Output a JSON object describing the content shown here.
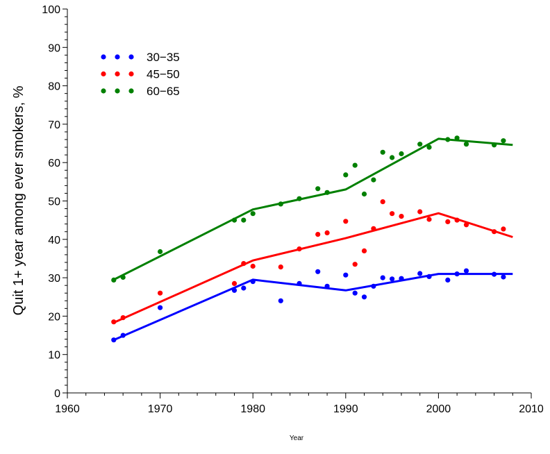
{
  "chart_data": {
    "type": "scatter",
    "title": "",
    "xlabel": "Year",
    "ylabel": "Quit 1+  year among ever smokers, %",
    "xlim": [
      1960,
      2010
    ],
    "ylim": [
      0,
      100
    ],
    "xticks": [
      1960,
      1970,
      1980,
      1990,
      2000,
      2010
    ],
    "yticks": [
      0,
      10,
      20,
      30,
      40,
      50,
      60,
      70,
      80,
      90,
      100
    ],
    "legend_position": "top-left",
    "series": [
      {
        "name": "30−35",
        "color": "#0000ff",
        "points": [
          [
            1965,
            13.8
          ],
          [
            1966,
            15.0
          ],
          [
            1970,
            22.2
          ],
          [
            1978,
            26.7
          ],
          [
            1979,
            27.3
          ],
          [
            1980,
            29.0
          ],
          [
            1983,
            24.0
          ],
          [
            1985,
            28.5
          ],
          [
            1987,
            31.6
          ],
          [
            1988,
            27.8
          ],
          [
            1990,
            30.7
          ],
          [
            1991,
            26.0
          ],
          [
            1992,
            25.0
          ],
          [
            1993,
            27.8
          ],
          [
            1994,
            30.0
          ],
          [
            1995,
            29.7
          ],
          [
            1996,
            29.8
          ],
          [
            1998,
            31.1
          ],
          [
            1999,
            30.3
          ],
          [
            2001,
            29.4
          ],
          [
            2002,
            31.0
          ],
          [
            2003,
            31.8
          ],
          [
            2006,
            30.9
          ],
          [
            2007,
            30.2
          ]
        ],
        "trend": [
          [
            1965,
            13.8
          ],
          [
            1980,
            29.5
          ],
          [
            1990,
            26.7
          ],
          [
            2000,
            31.0
          ],
          [
            2008,
            31.0
          ]
        ]
      },
      {
        "name": "45−50",
        "color": "#ff0000",
        "points": [
          [
            1965,
            18.5
          ],
          [
            1966,
            19.6
          ],
          [
            1970,
            26.0
          ],
          [
            1978,
            28.5
          ],
          [
            1979,
            33.7
          ],
          [
            1980,
            33.0
          ],
          [
            1983,
            32.8
          ],
          [
            1985,
            37.5
          ],
          [
            1987,
            41.3
          ],
          [
            1988,
            41.7
          ],
          [
            1990,
            44.7
          ],
          [
            1991,
            33.5
          ],
          [
            1992,
            37.0
          ],
          [
            1993,
            42.8
          ],
          [
            1994,
            49.8
          ],
          [
            1995,
            46.7
          ],
          [
            1996,
            46.0
          ],
          [
            1998,
            47.2
          ],
          [
            1999,
            45.2
          ],
          [
            2001,
            44.6
          ],
          [
            2002,
            45.0
          ],
          [
            2003,
            43.8
          ],
          [
            2006,
            42.0
          ],
          [
            2007,
            42.7
          ]
        ],
        "trend": [
          [
            1965,
            18.3
          ],
          [
            1980,
            34.5
          ],
          [
            1990,
            40.3
          ],
          [
            2000,
            46.8
          ],
          [
            2008,
            40.6
          ]
        ]
      },
      {
        "name": "60−65",
        "color": "#008000",
        "points": [
          [
            1965,
            29.4
          ],
          [
            1966,
            30.1
          ],
          [
            1970,
            36.8
          ],
          [
            1978,
            45.0
          ],
          [
            1979,
            45.0
          ],
          [
            1980,
            46.7
          ],
          [
            1983,
            49.2
          ],
          [
            1985,
            50.6
          ],
          [
            1987,
            53.2
          ],
          [
            1988,
            52.2
          ],
          [
            1990,
            56.8
          ],
          [
            1991,
            59.3
          ],
          [
            1992,
            51.8
          ],
          [
            1993,
            55.5
          ],
          [
            1994,
            62.7
          ],
          [
            1995,
            61.3
          ],
          [
            1996,
            62.3
          ],
          [
            1998,
            64.8
          ],
          [
            1999,
            64.0
          ],
          [
            2001,
            66.0
          ],
          [
            2002,
            66.4
          ],
          [
            2003,
            64.8
          ],
          [
            2006,
            64.6
          ],
          [
            2007,
            65.7
          ]
        ],
        "trend": [
          [
            1965,
            29.5
          ],
          [
            1980,
            47.8
          ],
          [
            1990,
            53.0
          ],
          [
            2000,
            66.2
          ],
          [
            2008,
            64.6
          ]
        ]
      }
    ]
  }
}
